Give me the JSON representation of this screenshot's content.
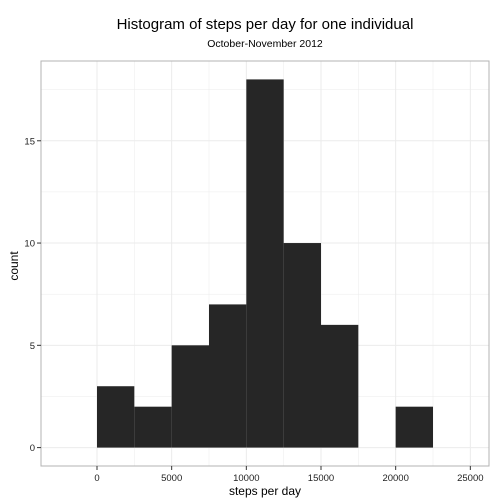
{
  "chart_data": {
    "type": "bar",
    "title": "Histogram of steps per day for one individual",
    "subtitle": "October-November 2012",
    "xlabel": "steps per day",
    "ylabel": "count",
    "bin_width": 2500,
    "bins": [
      {
        "start": 0,
        "end": 2500,
        "count": 3
      },
      {
        "start": 2500,
        "end": 5000,
        "count": 2
      },
      {
        "start": 5000,
        "end": 7500,
        "count": 5
      },
      {
        "start": 7500,
        "end": 10000,
        "count": 7
      },
      {
        "start": 10000,
        "end": 12500,
        "count": 18
      },
      {
        "start": 12500,
        "end": 15000,
        "count": 10
      },
      {
        "start": 15000,
        "end": 17500,
        "count": 6
      },
      {
        "start": 17500,
        "end": 20000,
        "count": 0
      },
      {
        "start": 20000,
        "end": 22500,
        "count": 2
      }
    ],
    "xlim": [
      -3750,
      26250
    ],
    "ylim": [
      -0.9,
      18.9
    ],
    "xticks": [
      0,
      5000,
      10000,
      15000,
      20000,
      25000
    ],
    "xtick_labels": [
      "0",
      "5000",
      "10000",
      "15000",
      "20000",
      "25000"
    ],
    "yticks": [
      0,
      5,
      10,
      15
    ],
    "ytick_labels": [
      "0",
      "5",
      "10",
      "15"
    ],
    "grid": true,
    "bar_color": "#262626",
    "grid_color": "#ebebeb",
    "panel_border_color": "#b3b3b3"
  }
}
